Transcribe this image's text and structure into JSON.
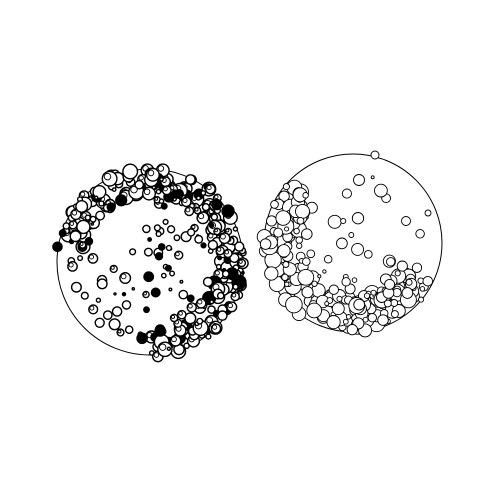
{
  "scene": {
    "background": "#ffffff",
    "ink": "#000000",
    "spheres": [
      {
        "id": "left",
        "bubble_style": "dense-dark"
      },
      {
        "id": "right",
        "bubble_style": "sparse-light"
      }
    ]
  }
}
